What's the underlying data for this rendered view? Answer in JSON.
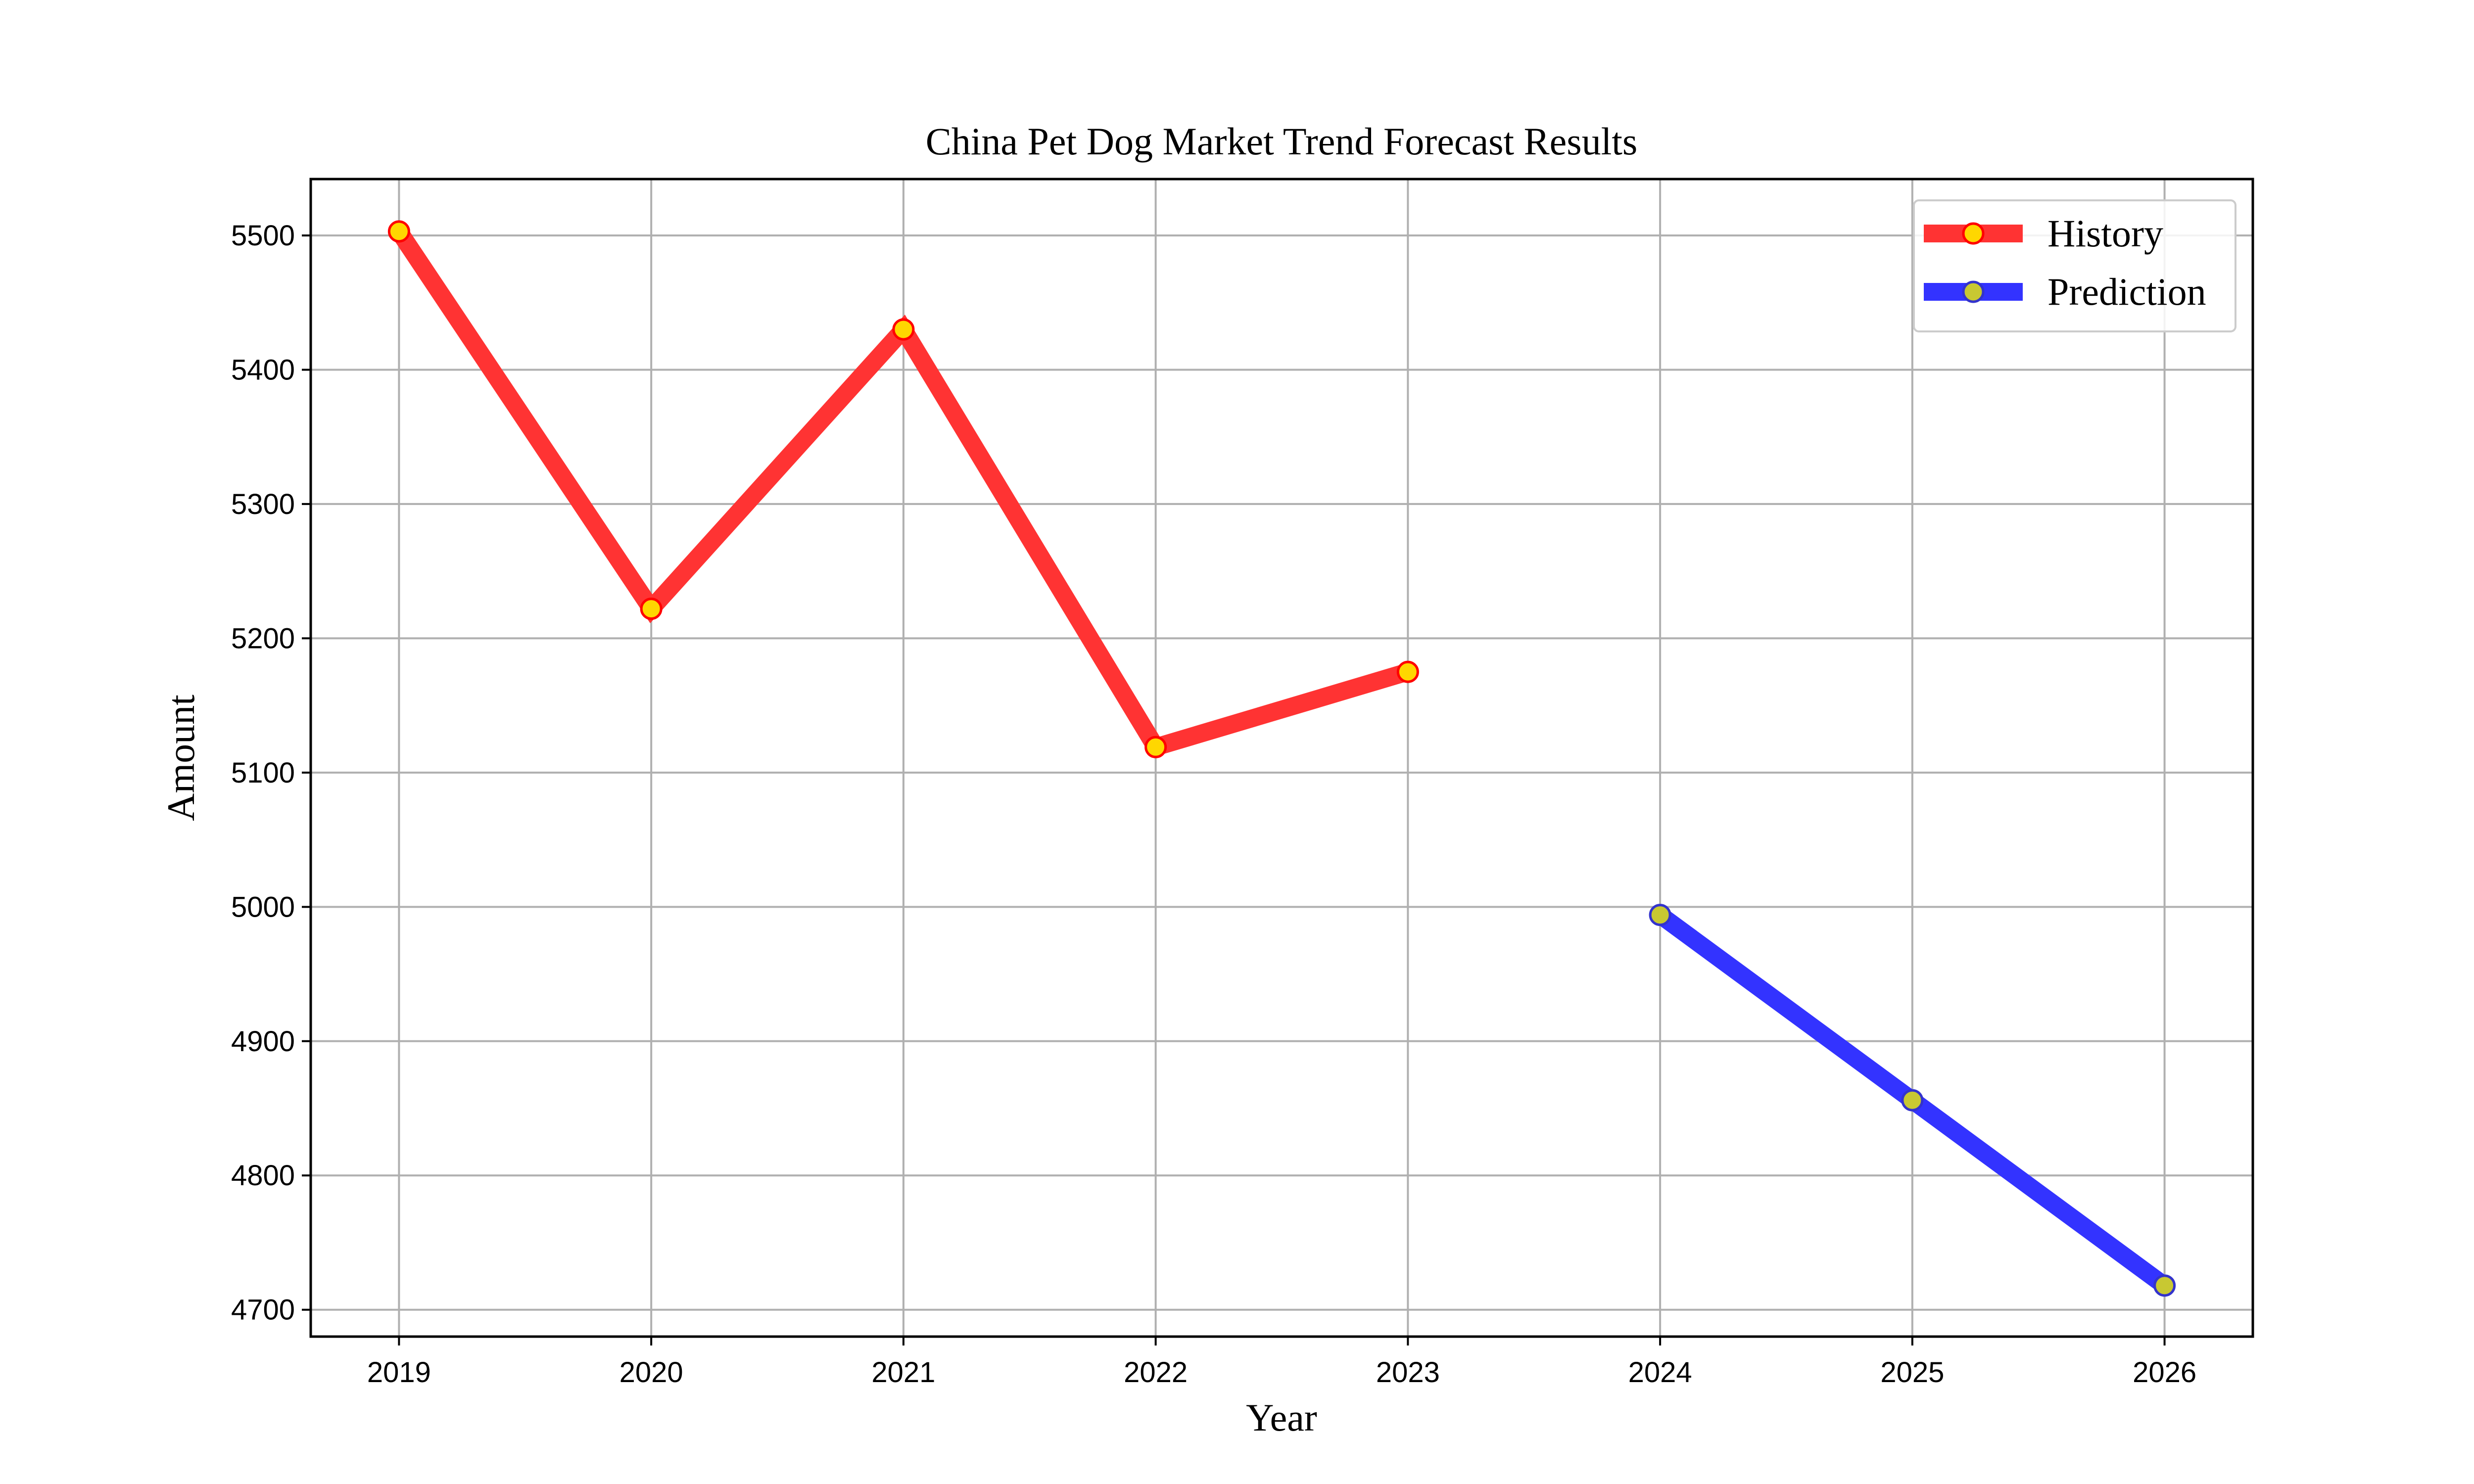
{
  "chart_data": {
    "type": "line",
    "title": "China Pet Dog Market Trend Forecast Results",
    "xlabel": "Year",
    "ylabel": "Amount",
    "x": [
      2019,
      2020,
      2021,
      2022,
      2023,
      2024,
      2025,
      2026
    ],
    "xlim": [
      2018.65,
      2026.35
    ],
    "ylim": [
      4680,
      5542
    ],
    "yticks": [
      4700,
      4800,
      4900,
      5000,
      5100,
      5200,
      5300,
      5400,
      5500
    ],
    "grid": true,
    "legend_position": "top-right",
    "series": [
      {
        "name": "History",
        "line_color": "#ff3333",
        "marker_face": "#ffd700",
        "marker_edge": "#ff0000",
        "points": [
          {
            "x": 2019,
            "y": 5503
          },
          {
            "x": 2020,
            "y": 5222
          },
          {
            "x": 2021,
            "y": 5430
          },
          {
            "x": 2022,
            "y": 5119
          },
          {
            "x": 2023,
            "y": 5175
          }
        ]
      },
      {
        "name": "Prediction",
        "line_color": "#3333ff",
        "marker_face": "#c8c832",
        "marker_edge": "#3333cc",
        "points": [
          {
            "x": 2024,
            "y": 4994
          },
          {
            "x": 2025,
            "y": 4856
          },
          {
            "x": 2026,
            "y": 4718
          }
        ]
      }
    ]
  }
}
